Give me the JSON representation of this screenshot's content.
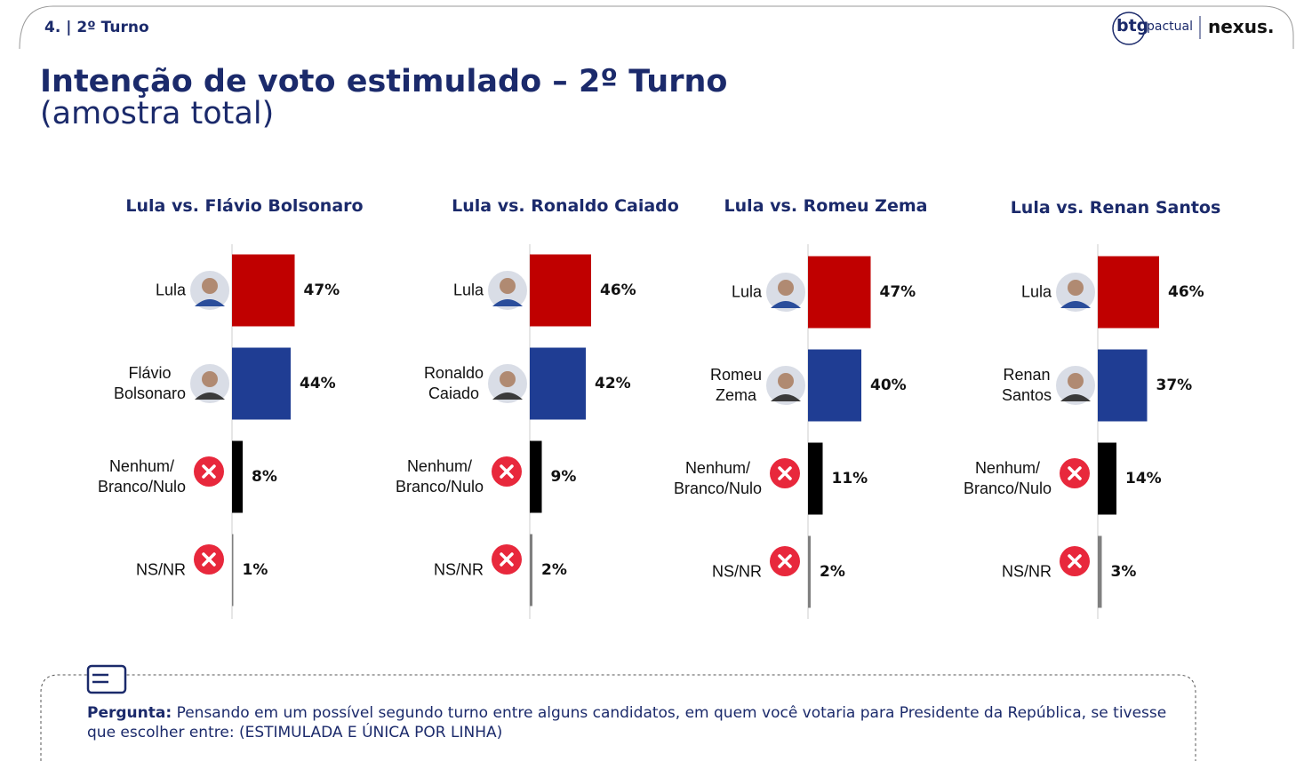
{
  "section": "4. | 2º Turno",
  "logos": [
    "btg",
    "pactual",
    "nexus."
  ],
  "title": "Intenção de voto estimulado – 2º Turno",
  "subtitle": "(amostra total)",
  "question": {
    "label": "Pergunta:",
    "text": "Pensando em um possível segundo turno entre alguns candidatos, em quem você votaria para Presidente da República, se tivesse que escolher entre: (ESTIMULADA E ÚNICA POR LINHA)"
  },
  "chart_data": [
    {
      "type": "bar",
      "orientation": "horizontal",
      "title": "Lula vs. Flávio Bolsonaro",
      "categories": [
        "Lula",
        "Flávio\nBolsonaro",
        "Nenhum/\nBranco/Nulo",
        "NS/NR"
      ],
      "values": [
        47,
        44,
        8,
        1
      ],
      "value_labels": [
        "47%",
        "44%",
        "8%",
        "1%"
      ],
      "colors": [
        "#c00000",
        "#1f3d93",
        "#000000",
        "#808080"
      ]
    },
    {
      "type": "bar",
      "orientation": "horizontal",
      "title": "Lula vs. Ronaldo Caiado",
      "categories": [
        "Lula",
        "Ronaldo\nCaiado",
        "Nenhum/\nBranco/Nulo",
        "NS/NR"
      ],
      "values": [
        46,
        42,
        9,
        2
      ],
      "value_labels": [
        "46%",
        "42%",
        "9%",
        "2%"
      ],
      "colors": [
        "#c00000",
        "#1f3d93",
        "#000000",
        "#808080"
      ]
    },
    {
      "type": "bar",
      "orientation": "horizontal",
      "title": "Lula vs. Romeu Zema",
      "categories": [
        "Lula",
        "Romeu\nZema",
        "Nenhum/\nBranco/Nulo",
        "NS/NR"
      ],
      "values": [
        47,
        40,
        11,
        2
      ],
      "value_labels": [
        "47%",
        "40%",
        "11%",
        "2%"
      ],
      "colors": [
        "#c00000",
        "#1f3d93",
        "#000000",
        "#808080"
      ]
    },
    {
      "type": "bar",
      "orientation": "horizontal",
      "title": "Lula vs. Renan Santos",
      "categories": [
        "Lula",
        "Renan\nSantos",
        "Nenhum/\nBranco/Nulo",
        "NS/NR"
      ],
      "values": [
        46,
        37,
        14,
        3
      ],
      "value_labels": [
        "46%",
        "37%",
        "14%",
        "3%"
      ],
      "colors": [
        "#c00000",
        "#1f3d93",
        "#000000",
        "#808080"
      ]
    }
  ]
}
